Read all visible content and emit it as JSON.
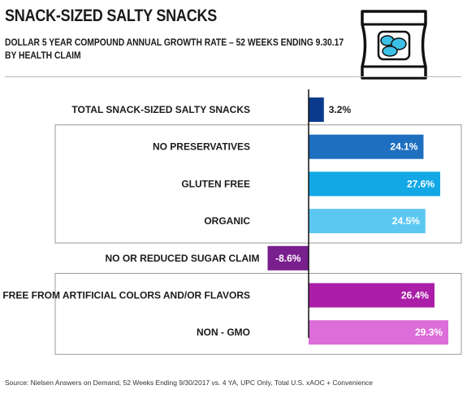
{
  "header": {
    "title": "SNACK-SIZED SALTY SNACKS",
    "subtitle_line1": "DOLLAR 5 YEAR COMPOUND ANNUAL GROWTH RATE – 52 WEEKS ENDING 9.30.17",
    "subtitle_line2": "BY HEALTH CLAIM",
    "icon": "snack-bag-icon"
  },
  "chart_data": {
    "type": "bar",
    "orientation": "horizontal",
    "categories": [
      "TOTAL SNACK-SIZED SALTY SNACKS",
      "NO PRESERVATIVES",
      "GLUTEN FREE",
      "ORGANIC",
      "NO OR REDUCED SUGAR CLAIM",
      "FREE FROM ARTIFICIAL COLORS AND/OR FLAVORS",
      "NON - GMO"
    ],
    "values": [
      3.2,
      24.1,
      27.6,
      24.5,
      -8.6,
      26.4,
      29.3
    ],
    "value_labels": [
      "3.2%",
      "24.1%",
      "27.6%",
      "24.5%",
      "-8.6%",
      "26.4%",
      "29.3%"
    ],
    "colors": [
      "#0a3a8c",
      "#1e6fc0",
      "#12a8e6",
      "#5cc8f2",
      "#7a1f8e",
      "#ab1fa8",
      "#dd6ed9"
    ],
    "label_colors": [
      "#1a1a1a",
      "#ffffff",
      "#ffffff",
      "#ffffff",
      "#ffffff",
      "#ffffff",
      "#ffffff"
    ],
    "groups": [
      [
        1,
        3
      ],
      [
        5,
        6
      ]
    ],
    "xlim": [
      -11,
      31
    ],
    "grid": false,
    "title": "SNACK-SIZED SALTY SNACKS"
  },
  "footer": {
    "source": "Source: Nielsen Answers on Demand, 52 Weeks Ending 9/30/2017 vs. 4 YA, UPC Only, Total U.S. xAOC + Convenience"
  }
}
